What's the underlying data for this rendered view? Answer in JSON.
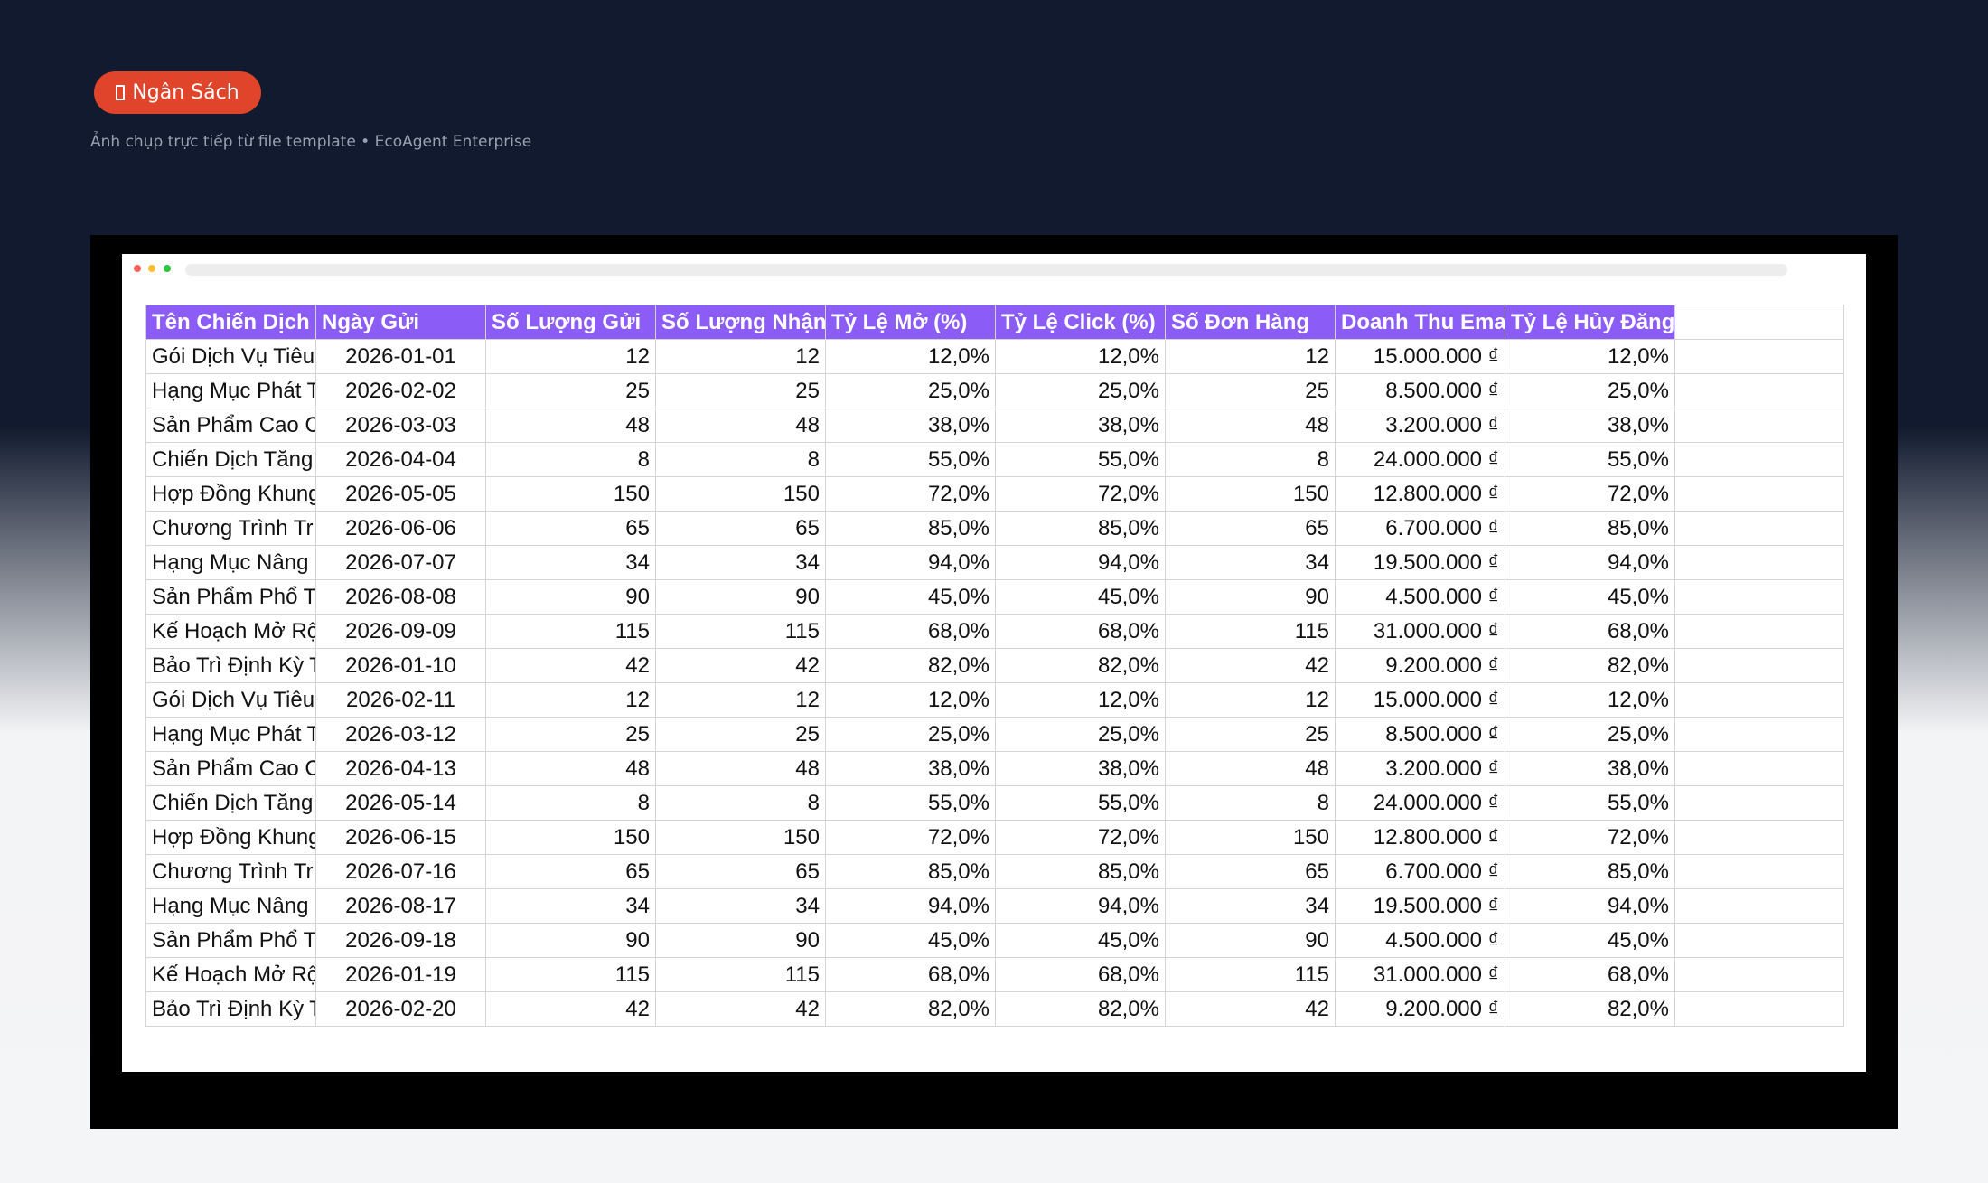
{
  "header": {
    "badge": "Ngân Sách",
    "subtitle": "Ảnh chụp trực tiếp từ file template • EcoAgent Enterprise"
  },
  "table": {
    "columns": [
      "Tên Chiến Dịch",
      "Ngày Gửi",
      "Số Lượng Gửi",
      "Số Lượng Nhận",
      "Tỷ Lệ Mở (%)",
      "Tỷ Lệ Click (%)",
      "Số Đơn Hàng",
      "Doanh Thu Ema",
      "Tỷ Lệ Hủy Đăng"
    ],
    "rows": [
      [
        "Gói Dịch Vụ Tiêu",
        "2026-01-01",
        "12",
        "12",
        "12,0%",
        "12,0%",
        "12",
        "15.000.000 ₫",
        "12,0%"
      ],
      [
        "Hạng Mục Phát T",
        "2026-02-02",
        "25",
        "25",
        "25,0%",
        "25,0%",
        "25",
        "8.500.000 ₫",
        "25,0%"
      ],
      [
        "Sản Phẩm Cao C",
        "2026-03-03",
        "48",
        "48",
        "38,0%",
        "38,0%",
        "48",
        "3.200.000 ₫",
        "38,0%"
      ],
      [
        "Chiến Dịch Tăng",
        "2026-04-04",
        "8",
        "8",
        "55,0%",
        "55,0%",
        "8",
        "24.000.000 ₫",
        "55,0%"
      ],
      [
        "Hợp Đồng Khung",
        "2026-05-05",
        "150",
        "150",
        "72,0%",
        "72,0%",
        "150",
        "12.800.000 ₫",
        "72,0%"
      ],
      [
        "Chương Trình Tr",
        "2026-06-06",
        "65",
        "65",
        "85,0%",
        "85,0%",
        "65",
        "6.700.000 ₫",
        "85,0%"
      ],
      [
        "Hạng Mục Nâng",
        "2026-07-07",
        "34",
        "34",
        "94,0%",
        "94,0%",
        "34",
        "19.500.000 ₫",
        "94,0%"
      ],
      [
        "Sản Phẩm Phổ T",
        "2026-08-08",
        "90",
        "90",
        "45,0%",
        "45,0%",
        "90",
        "4.500.000 ₫",
        "45,0%"
      ],
      [
        "Kế Hoạch Mở Rộ",
        "2026-09-09",
        "115",
        "115",
        "68,0%",
        "68,0%",
        "115",
        "31.000.000 ₫",
        "68,0%"
      ],
      [
        "Bảo Trì Định Kỳ T",
        "2026-01-10",
        "42",
        "42",
        "82,0%",
        "82,0%",
        "42",
        "9.200.000 ₫",
        "82,0%"
      ],
      [
        "Gói Dịch Vụ Tiêu",
        "2026-02-11",
        "12",
        "12",
        "12,0%",
        "12,0%",
        "12",
        "15.000.000 ₫",
        "12,0%"
      ],
      [
        "Hạng Mục Phát T",
        "2026-03-12",
        "25",
        "25",
        "25,0%",
        "25,0%",
        "25",
        "8.500.000 ₫",
        "25,0%"
      ],
      [
        "Sản Phẩm Cao C",
        "2026-04-13",
        "48",
        "48",
        "38,0%",
        "38,0%",
        "48",
        "3.200.000 ₫",
        "38,0%"
      ],
      [
        "Chiến Dịch Tăng",
        "2026-05-14",
        "8",
        "8",
        "55,0%",
        "55,0%",
        "8",
        "24.000.000 ₫",
        "55,0%"
      ],
      [
        "Hợp Đồng Khung",
        "2026-06-15",
        "150",
        "150",
        "72,0%",
        "72,0%",
        "150",
        "12.800.000 ₫",
        "72,0%"
      ],
      [
        "Chương Trình Tr",
        "2026-07-16",
        "65",
        "65",
        "85,0%",
        "85,0%",
        "65",
        "6.700.000 ₫",
        "85,0%"
      ],
      [
        "Hạng Mục Nâng",
        "2026-08-17",
        "34",
        "34",
        "94,0%",
        "94,0%",
        "34",
        "19.500.000 ₫",
        "94,0%"
      ],
      [
        "Sản Phẩm Phổ T",
        "2026-09-18",
        "90",
        "90",
        "45,0%",
        "45,0%",
        "90",
        "4.500.000 ₫",
        "45,0%"
      ],
      [
        "Kế Hoạch Mở Rộ",
        "2026-01-19",
        "115",
        "115",
        "68,0%",
        "68,0%",
        "115",
        "31.000.000 ₫",
        "68,0%"
      ],
      [
        "Bảo Trì Định Kỳ T",
        "2026-02-20",
        "42",
        "42",
        "82,0%",
        "82,0%",
        "42",
        "9.200.000 ₫",
        "82,0%"
      ]
    ]
  }
}
